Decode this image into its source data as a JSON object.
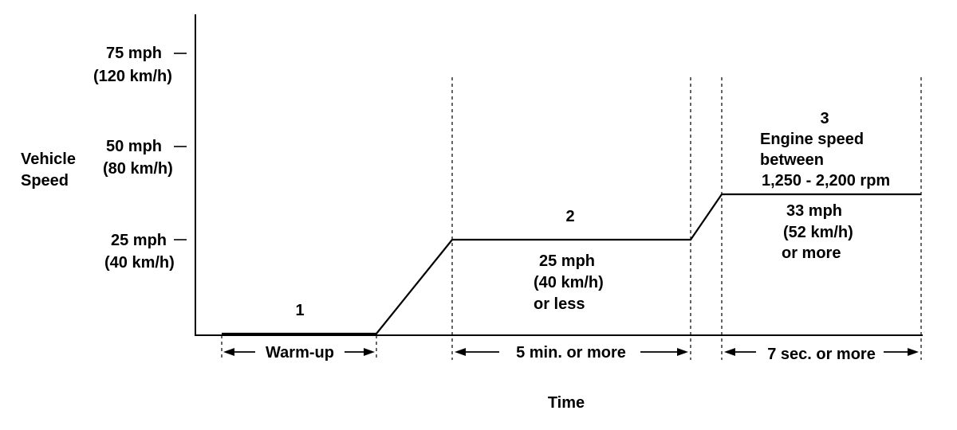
{
  "y_axis": {
    "title_line1": "Vehicle",
    "title_line2": "Speed",
    "ticks": [
      {
        "mph": "75 mph",
        "kmh": "(120 km/h)"
      },
      {
        "mph": "50 mph",
        "kmh": "(80 km/h)"
      },
      {
        "mph": "25 mph",
        "kmh": "(40 km/h)"
      }
    ]
  },
  "x_axis": {
    "title": "Time"
  },
  "phases": [
    {
      "number": "1",
      "duration": "Warm-up",
      "notes": []
    },
    {
      "number": "2",
      "duration": "5 min. or more",
      "notes": [
        "25 mph",
        "(40 km/h)",
        "or less"
      ]
    },
    {
      "number": "3",
      "duration": "7 sec. or more",
      "heading": [
        "Engine speed",
        "between",
        "1,250 - 2,200 rpm"
      ],
      "notes": [
        "33 mph",
        "(52 km/h)",
        "or more"
      ]
    }
  ],
  "speed_profile_mph": [
    {
      "t": "start-1",
      "mph": 0
    },
    {
      "t": "end-1",
      "mph": 0
    },
    {
      "t": "start-2",
      "mph": 25
    },
    {
      "t": "end-2",
      "mph": 25
    },
    {
      "t": "start-3",
      "mph": 33
    },
    {
      "t": "end-3",
      "mph": 33
    }
  ]
}
